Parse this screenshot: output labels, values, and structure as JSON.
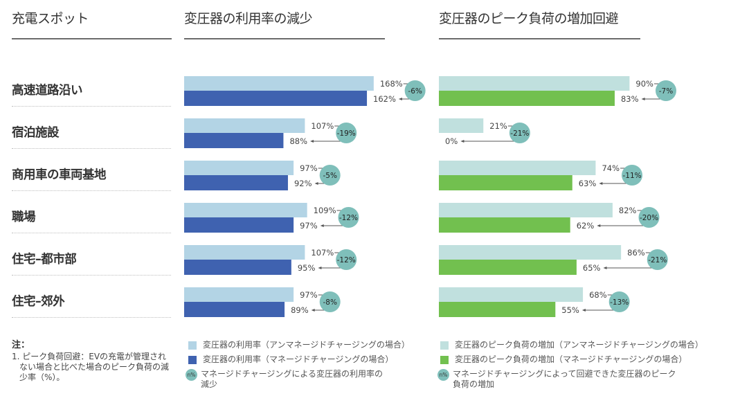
{
  "headers": {
    "col1": "充電スポット",
    "col2": "変圧器の利用率の減少",
    "col3": "変圧器のピーク負荷の増加回避"
  },
  "colors": {
    "util_unmanaged": "#b3d4e5",
    "util_managed": "#3f62b0",
    "peak_unmanaged": "#c0e0de",
    "peak_managed": "#72c04f",
    "badge": "#7fbfba"
  },
  "chart_data": [
    {
      "type": "bar",
      "orientation": "horizontal",
      "title": "変圧器の利用率の減少",
      "categories": [
        "高速道路沿い",
        "宿泊施設",
        "商用車の車両基地",
        "職場",
        "住宅–都市部",
        "住宅–郊外"
      ],
      "series": [
        {
          "name": "変圧器の利用率（アンマネージドチャージングの場合）",
          "values": [
            168,
            107,
            97,
            109,
            107,
            97
          ],
          "labels": [
            "168%",
            "107%",
            "97%",
            "109%",
            "107%",
            "97%"
          ]
        },
        {
          "name": "変圧器の利用率（マネージドチャージングの場合）",
          "values": [
            162,
            88,
            92,
            97,
            95,
            89
          ],
          "labels": [
            "162%",
            "88%",
            "92%",
            "97%",
            "95%",
            "89%"
          ]
        }
      ],
      "reductions": [
        "-6%",
        "-19%",
        "-5%",
        "-12%",
        "-12%",
        "-8%"
      ],
      "unit": "%",
      "xlim": [
        0,
        170
      ],
      "grid": false
    },
    {
      "type": "bar",
      "orientation": "horizontal",
      "title": "変圧器のピーク負荷の増加回避",
      "categories": [
        "高速道路沿い",
        "宿泊施設",
        "商用車の車両基地",
        "職場",
        "住宅–都市部",
        "住宅–郊外"
      ],
      "series": [
        {
          "name": "変圧器のピーク負荷の増加（アンマネージドチャージングの場合）",
          "values": [
            90,
            21,
            74,
            82,
            86,
            68
          ],
          "labels": [
            "90%",
            "21%",
            "74%",
            "82%",
            "86%",
            "68%"
          ]
        },
        {
          "name": "変圧器のピーク負荷の増加（マネージドチャージングの場合）",
          "values": [
            83,
            0,
            63,
            62,
            65,
            55
          ],
          "labels": [
            "83%",
            "0%",
            "63%",
            "62%",
            "65%",
            "55%"
          ]
        }
      ],
      "reductions": [
        "-7%",
        "-21%",
        "-11%",
        "-20%",
        "-21%",
        "-13%"
      ],
      "unit": "%",
      "xlim": [
        0,
        90
      ],
      "grid": false
    }
  ],
  "notes": {
    "title": "注：",
    "items": [
      "1. ピーク負荷回避：EVの充電が管理されない場合と比べた場合のピーク負荷の減少率（%）。"
    ]
  },
  "legend_left": [
    {
      "label": "変圧器の利用率（アンマネージドチャージングの場合）",
      "kind": "util_unmanaged"
    },
    {
      "label": "変圧器の利用率（マネージドチャージングの場合）",
      "kind": "util_managed"
    },
    {
      "label": "マネージドチャージングによる変圧器の利用率の減少",
      "kind": "badge",
      "badge_text": "n%"
    }
  ],
  "legend_right": [
    {
      "label": "変圧器のピーク負荷の増加（アンマネージドチャージングの場合）",
      "kind": "peak_unmanaged"
    },
    {
      "label": "変圧器のピーク負荷の増加（マネージドチャージングの場合）",
      "kind": "peak_managed"
    },
    {
      "label": "マネージドチャージングによって回避できた変圧器のピーク負荷の増加",
      "kind": "badge",
      "badge_text": "n%"
    }
  ]
}
